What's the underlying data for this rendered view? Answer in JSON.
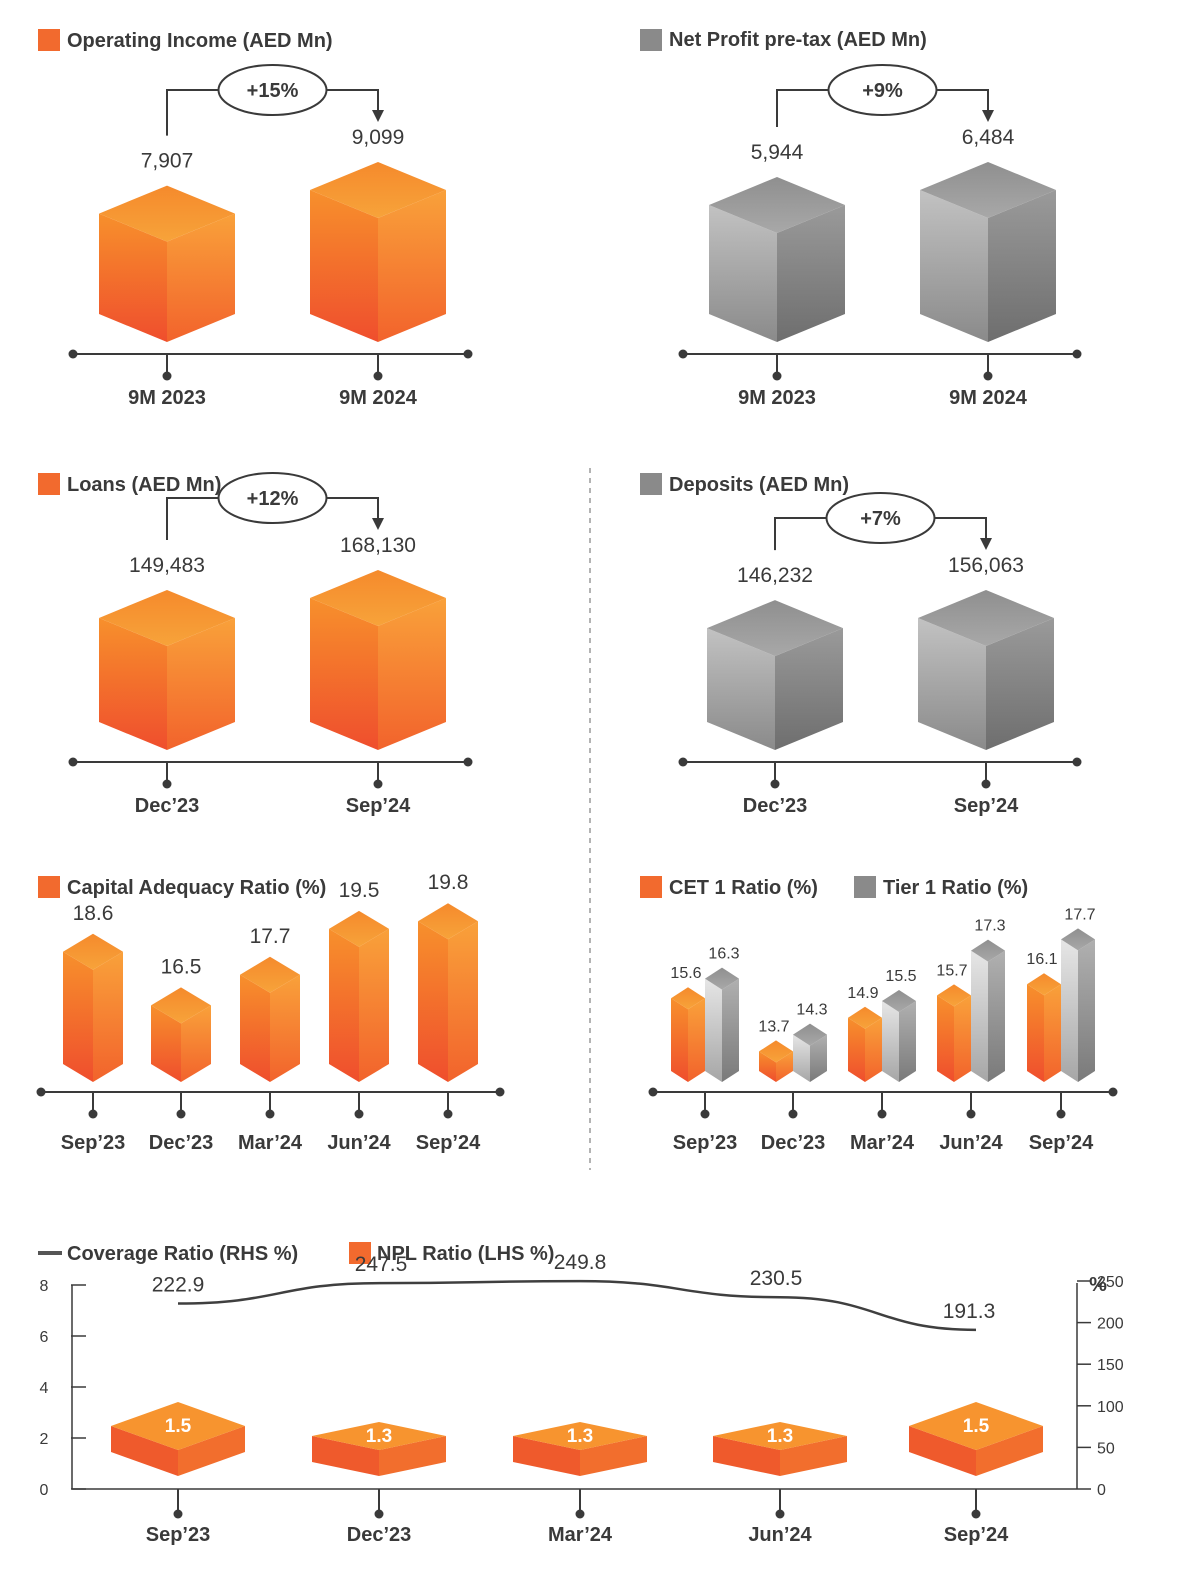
{
  "colors": {
    "orange": "#f47a2a",
    "orange_dark": "#e85a2c",
    "grey": "#8a8a8a",
    "grey_dark": "#6e6e6e",
    "line": "#3a3a3a",
    "divider": "#999999"
  },
  "chart_data": [
    {
      "id": "opinc",
      "type": "bar",
      "title": "Operating Income (AED Mn)",
      "color": "orange",
      "categories": [
        "9M 2023",
        "9M 2024"
      ],
      "values": [
        7907,
        9099
      ],
      "value_labels": [
        "7,907",
        "9,099"
      ],
      "change": "+15%"
    },
    {
      "id": "npbt",
      "type": "bar",
      "title": "Net Profit pre-tax (AED Mn)",
      "color": "grey",
      "categories": [
        "9M 2023",
        "9M 2024"
      ],
      "values": [
        5944,
        6484
      ],
      "value_labels": [
        "5,944",
        "6,484"
      ],
      "change": "+9%"
    },
    {
      "id": "loans",
      "type": "bar",
      "title": "Loans (AED Mn)",
      "color": "orange",
      "categories": [
        "Dec’23",
        "Sep’24"
      ],
      "values": [
        149483,
        168130
      ],
      "value_labels": [
        "149,483",
        "168,130"
      ],
      "change": "+12%"
    },
    {
      "id": "deposits",
      "type": "bar",
      "title": "Deposits (AED Mn)",
      "color": "grey",
      "categories": [
        "Dec’23",
        "Sep’24"
      ],
      "values": [
        146232,
        156063
      ],
      "value_labels": [
        "146,232",
        "156,063"
      ],
      "change": "+7%"
    },
    {
      "id": "car",
      "type": "bar",
      "title": "Capital Adequacy Ratio (%)",
      "color": "orange",
      "categories": [
        "Sep’23",
        "Dec’23",
        "Mar’24",
        "Jun’24",
        "Sep’24"
      ],
      "values": [
        18.6,
        16.5,
        17.7,
        19.5,
        19.8
      ]
    },
    {
      "id": "cet",
      "type": "bar",
      "categories": [
        "Sep’23",
        "Dec’23",
        "Mar’24",
        "Jun’24",
        "Sep’24"
      ],
      "series": [
        {
          "name": "CET 1 Ratio (%)",
          "color": "orange",
          "values": [
            15.6,
            13.7,
            14.9,
            15.7,
            16.1
          ]
        },
        {
          "name": "Tier 1 Ratio (%)",
          "color": "grey",
          "values": [
            16.3,
            14.3,
            15.5,
            17.3,
            17.7
          ]
        }
      ]
    },
    {
      "id": "npl",
      "type": "bar",
      "categories": [
        "Sep’23",
        "Dec’23",
        "Mar’24",
        "Jun’24",
        "Sep’24"
      ],
      "series": [
        {
          "name": "Coverage Ratio (RHS %)",
          "type": "line",
          "axis": "right",
          "values": [
            222.9,
            247.5,
            249.8,
            230.5,
            191.3
          ]
        },
        {
          "name": "NPL Ratio (LHS %)",
          "type": "bar",
          "axis": "left",
          "color": "orange",
          "values": [
            1.5,
            1.3,
            1.3,
            1.3,
            1.5
          ]
        }
      ],
      "left_axis": {
        "ticks": [
          "0",
          "2",
          "4",
          "6",
          "8"
        ],
        "ylim": [
          0,
          8
        ]
      },
      "right_axis": {
        "unit": "%",
        "ticks": [
          "0",
          "50",
          "100",
          "150",
          "200",
          "250"
        ],
        "ylim": [
          0,
          250
        ]
      }
    }
  ]
}
